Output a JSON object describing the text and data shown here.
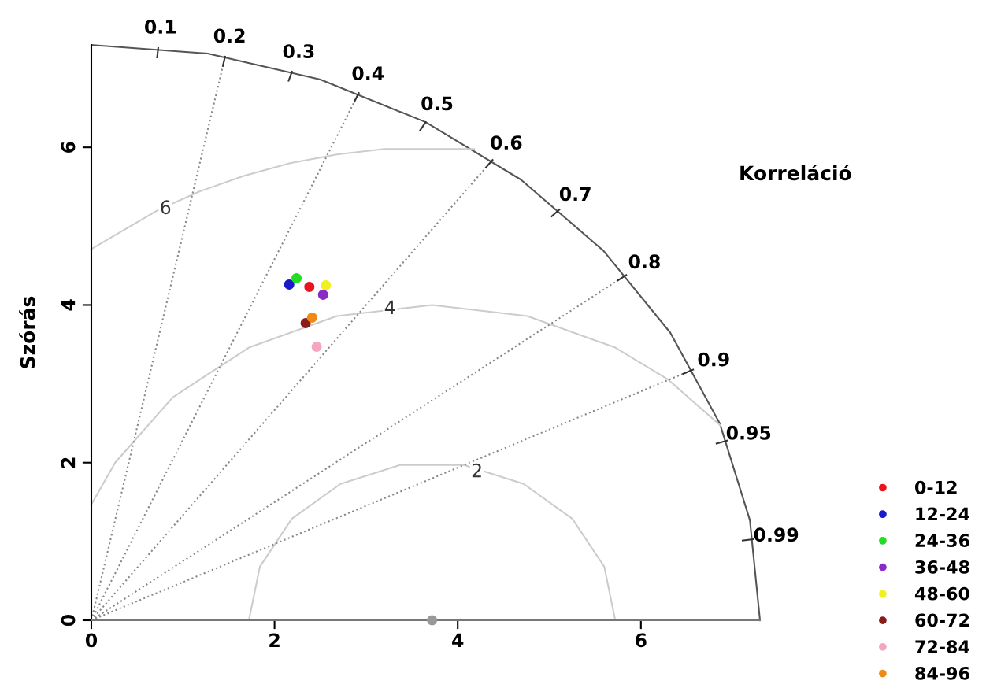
{
  "chart_data": {
    "type": "scatter",
    "ylabel": "Szórás",
    "xlim": [
      0,
      7.3
    ],
    "ylim": [
      0,
      7.3
    ],
    "xticks": [
      0,
      2,
      4,
      6
    ],
    "yticks": [
      0,
      2,
      4,
      6
    ],
    "grid": false,
    "legend": "bottom right",
    "marker": "circle",
    "series": [
      {
        "type": "line",
        "x": [
          7.3,
          7.19,
          6.86,
          6.32,
          5.59,
          4.69,
          3.65,
          2.5,
          1.27,
          0
        ],
        "values": [
          0,
          1.27,
          2.5,
          3.65,
          4.69,
          5.59,
          6.32,
          6.86,
          7.19,
          7.3
        ],
        "color": "#555555",
        "line_style": "solid",
        "marker": "none"
      },
      {
        "type": "line",
        "x": [
          5.72,
          5.6,
          5.25,
          4.72,
          4.07,
          3.37,
          2.72,
          2.19,
          1.84,
          1.72
        ],
        "values": [
          0,
          0.68,
          1.29,
          1.73,
          1.97,
          1.97,
          1.73,
          1.29,
          0.68,
          0
        ],
        "color": "#cccccc",
        "line_style": "solid",
        "marker": "none"
      },
      {
        "type": "line",
        "x": [
          6.87,
          6.29,
          5.72,
          4.76,
          3.72,
          2.68,
          1.72,
          0.89,
          0.26,
          0
        ],
        "values": [
          2.47,
          3.06,
          3.46,
          3.86,
          4.0,
          3.86,
          3.46,
          2.83,
          2.0,
          1.47
        ],
        "color": "#cccccc",
        "line_style": "solid",
        "marker": "none"
      },
      {
        "type": "line",
        "x": [
          4.18,
          3.2,
          2.68,
          2.17,
          1.67,
          1.18,
          0.72,
          0
        ],
        "values": [
          5.98,
          5.98,
          5.91,
          5.8,
          5.64,
          5.44,
          5.2,
          4.71
        ],
        "color": "#cccccc",
        "line_style": "solid",
        "marker": "none"
      },
      {
        "type": "line",
        "x": [
          0,
          1.46
        ],
        "values": [
          0,
          7.15
        ],
        "color": "#888888",
        "line_style": "dotted",
        "marker": "none"
      },
      {
        "type": "line",
        "x": [
          0,
          2.92
        ],
        "values": [
          0,
          6.69
        ],
        "color": "#888888",
        "line_style": "dotted",
        "marker": "none"
      },
      {
        "type": "line",
        "x": [
          0,
          4.38
        ],
        "values": [
          0,
          5.84
        ],
        "color": "#888888",
        "line_style": "dotted",
        "marker": "none"
      },
      {
        "type": "line",
        "x": [
          0,
          5.84
        ],
        "values": [
          0,
          4.38
        ],
        "color": "#888888",
        "line_style": "dotted",
        "marker": "none"
      },
      {
        "type": "line",
        "x": [
          0,
          6.57
        ],
        "values": [
          0,
          3.18
        ],
        "color": "#888888",
        "line_style": "dotted",
        "marker": "none"
      },
      {
        "x": [
          3.72
        ],
        "values": [
          0
        ],
        "color": "#999999"
      },
      {
        "name": "0-12",
        "x": [
          2.38
        ],
        "values": [
          4.23
        ],
        "color": "#e8141e"
      },
      {
        "name": "12-24",
        "x": [
          2.16
        ],
        "values": [
          4.26
        ],
        "color": "#1a1acc"
      },
      {
        "name": "24-36",
        "x": [
          2.24
        ],
        "values": [
          4.34
        ],
        "color": "#22dd22"
      },
      {
        "name": "36-48",
        "x": [
          2.53
        ],
        "values": [
          4.13
        ],
        "color": "#8a2bc8"
      },
      {
        "name": "48-60",
        "x": [
          2.56
        ],
        "values": [
          4.25
        ],
        "color": "#f0f020"
      },
      {
        "name": "60-72",
        "x": [
          2.34
        ],
        "values": [
          3.77
        ],
        "color": "#8b1a1a"
      },
      {
        "name": "72-84",
        "x": [
          2.46
        ],
        "values": [
          3.47
        ],
        "color": "#f4a6c0"
      },
      {
        "name": "84-96",
        "x": [
          2.41
        ],
        "values": [
          3.84
        ],
        "color": "#f08a10"
      }
    ],
    "annotations": [
      "Korreláció",
      {
        "text": "6",
        "x": 0.81,
        "y": 5.22
      },
      {
        "text": "4",
        "x": 3.26,
        "y": 3.95
      },
      {
        "text": "2",
        "x": 4.21,
        "y": 1.88
      },
      {
        "text": "0.1",
        "x": 0.73,
        "y": 7.26
      },
      {
        "text": "0.2",
        "x": 1.46,
        "y": 7.15
      },
      {
        "text": "0.3",
        "x": 2.19,
        "y": 6.96
      },
      {
        "text": "0.4",
        "x": 2.92,
        "y": 6.69
      },
      {
        "text": "0.5",
        "x": 3.65,
        "y": 6.32
      },
      {
        "text": "0.6",
        "x": 4.38,
        "y": 5.84
      },
      {
        "text": "0.7",
        "x": 5.11,
        "y": 5.21
      },
      {
        "text": "0.8",
        "x": 5.84,
        "y": 4.38
      },
      {
        "text": "0.9",
        "x": 6.57,
        "y": 3.18
      },
      {
        "text": "0.95",
        "x": 6.94,
        "y": 2.28
      },
      {
        "text": "0.99",
        "x": 7.23,
        "y": 1.03
      }
    ]
  }
}
